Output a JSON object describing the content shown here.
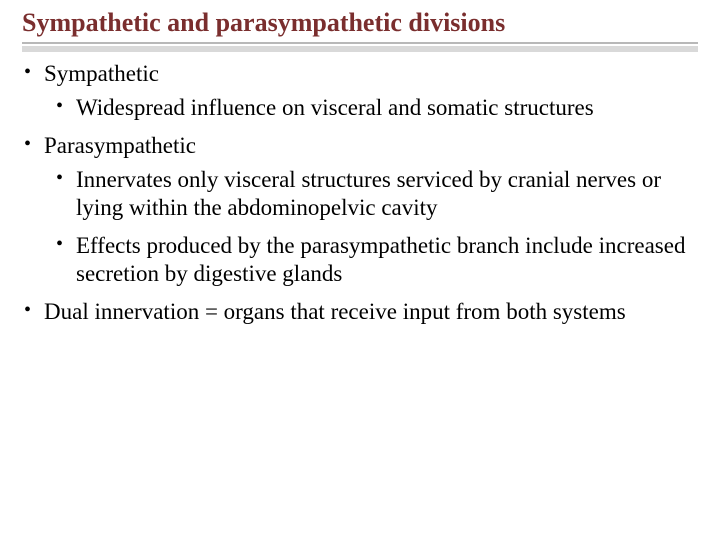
{
  "title": "Sympathetic and parasympathetic divisions",
  "colors": {
    "title_color": "#7a2e2e",
    "underline_gray": "#d9d9d9",
    "border_gray": "#b8b8b8",
    "text_color": "#000000",
    "background": "#ffffff"
  },
  "typography": {
    "title_fontsize": 26,
    "body_fontsize": 23,
    "font_family": "Georgia, Times New Roman, serif"
  },
  "bullets": {
    "item1": {
      "label": "Sympathetic",
      "sub1": "Widespread influence on visceral and somatic structures"
    },
    "item2": {
      "label": "Parasympathetic",
      "sub1": "Innervates only visceral structures serviced by cranial nerves or lying within the abdominopelvic cavity",
      "sub2": "Effects produced by the parasympathetic branch include increased secretion by digestive glands"
    },
    "item3": {
      "label": "Dual innervation = organs that receive input from both systems"
    }
  }
}
